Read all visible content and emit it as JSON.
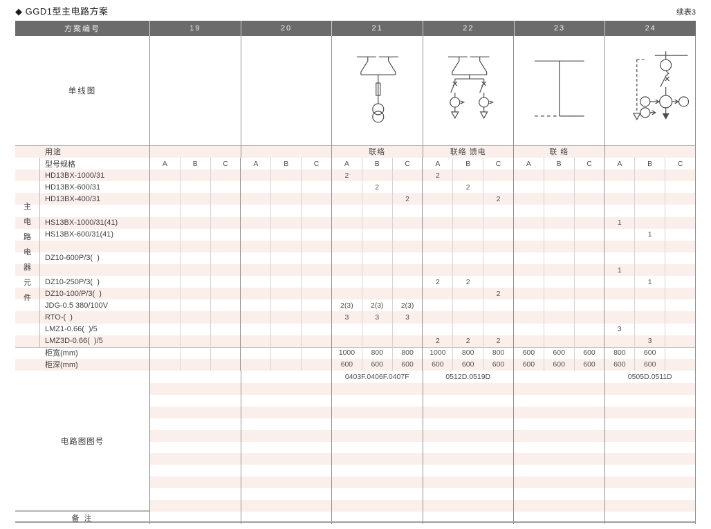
{
  "page": {
    "title": "◆ GGD1型主电路方案",
    "continuation_note": "续表3"
  },
  "colors": {
    "header_bg": "#6b6b6b",
    "header_text": "#efefef",
    "stripe_pink": "#fbefec",
    "border_light": "#d4d4d4",
    "border_dark": "#8f8f8f",
    "text": "#4a4a4a"
  },
  "table": {
    "header": {
      "label": "方案编号",
      "schemes": [
        "19",
        "20",
        "21",
        "22",
        "23",
        "24"
      ]
    },
    "diagram_row": {
      "label": "单线图",
      "icons": [
        "empty",
        "empty",
        "busbar-disconnectors-fuse-voltage-transformer-diagram",
        "busbar-disconnectors-dual-feeder-meter-diagram",
        "bus-tie-link-diagram",
        "incoming-fuse-switch-meters-feeder-diagram"
      ]
    },
    "purpose_row": {
      "label": "用途",
      "values": [
        "",
        "",
        "联络",
        "联络 馈电",
        "联 络",
        ""
      ]
    },
    "spec_row": {
      "label": "型号规格",
      "subcolumns": [
        "A",
        "B",
        "C"
      ]
    },
    "side_label_chars": [
      "主",
      "电",
      "路",
      "电",
      "器",
      "元",
      "件"
    ],
    "component_rows": [
      {
        "label": "HD13BX-1000/31",
        "cells": [
          "",
          "",
          "",
          "",
          "",
          "",
          "2",
          "",
          "",
          "2",
          "",
          "",
          "",
          "",
          "",
          "",
          "",
          ""
        ]
      },
      {
        "label": "HD13BX-600/31",
        "cells": [
          "",
          "",
          "",
          "",
          "",
          "",
          "",
          "2",
          "",
          "",
          "2",
          "",
          "",
          "",
          "",
          "",
          "",
          ""
        ]
      },
      {
        "label": "HD13BX-400/31",
        "cells": [
          "",
          "",
          "",
          "",
          "",
          "",
          "",
          "",
          "2",
          "",
          "",
          "2",
          "",
          "",
          "",
          "",
          "",
          ""
        ]
      },
      {
        "label": "",
        "cells": [
          "",
          "",
          "",
          "",
          "",
          "",
          "",
          "",
          "",
          "",
          "",
          "",
          "",
          "",
          "",
          "",
          "",
          ""
        ]
      },
      {
        "label": "HS13BX-1000/31(41)",
        "cells": [
          "",
          "",
          "",
          "",
          "",
          "",
          "",
          "",
          "",
          "",
          "",
          "",
          "",
          "",
          "",
          "1",
          "",
          ""
        ]
      },
      {
        "label": "HS13BX-600/31(41)",
        "cells": [
          "",
          "",
          "",
          "",
          "",
          "",
          "",
          "",
          "",
          "",
          "",
          "",
          "",
          "",
          "",
          "",
          "1",
          ""
        ]
      },
      {
        "label": "",
        "cells": [
          "",
          "",
          "",
          "",
          "",
          "",
          "",
          "",
          "",
          "",
          "",
          "",
          "",
          "",
          "",
          "",
          "",
          ""
        ]
      },
      {
        "label": "DZ10-600P/3(  )",
        "cells": [
          "",
          "",
          "",
          "",
          "",
          "",
          "",
          "",
          "",
          "",
          "",
          "",
          "",
          "",
          "",
          "",
          "",
          ""
        ]
      },
      {
        "label": "",
        "cells": [
          "",
          "",
          "",
          "",
          "",
          "",
          "",
          "",
          "",
          "",
          "",
          "",
          "",
          "",
          "",
          "1",
          "",
          ""
        ]
      },
      {
        "label": "DZ10-250P/3(  )",
        "cells": [
          "",
          "",
          "",
          "",
          "",
          "",
          "",
          "",
          "",
          "2",
          "2",
          "",
          "",
          "",
          "",
          "",
          "1",
          ""
        ]
      },
      {
        "label": "DZ10-100/P/3(  )",
        "cells": [
          "",
          "",
          "",
          "",
          "",
          "",
          "",
          "",
          "",
          "",
          "",
          "2",
          "",
          "",
          "",
          "",
          "",
          ""
        ]
      },
      {
        "label": "JDG-0.5 380/100V",
        "cells": [
          "",
          "",
          "",
          "",
          "",
          "",
          "2(3)",
          "2(3)",
          "2(3)",
          "",
          "",
          "",
          "",
          "",
          "",
          "",
          "",
          ""
        ]
      },
      {
        "label": "RTO-(  )",
        "cells": [
          "",
          "",
          "",
          "",
          "",
          "",
          "3",
          "3",
          "3",
          "",
          "",
          "",
          "",
          "",
          "",
          "",
          "",
          ""
        ]
      },
      {
        "label": "LMZ1-0.66(  )/5",
        "cells": [
          "",
          "",
          "",
          "",
          "",
          "",
          "",
          "",
          "",
          "",
          "",
          "",
          "",
          "",
          "",
          "3",
          "",
          ""
        ]
      },
      {
        "label": "LMZ3D-0.66(  )/5",
        "cells": [
          "",
          "",
          "",
          "",
          "",
          "",
          "",
          "",
          "",
          "2",
          "2",
          "2",
          "",
          "",
          "",
          "",
          "3",
          ""
        ]
      },
      {
        "label": "柜宽(mm)",
        "cells": [
          "",
          "",
          "",
          "",
          "",
          "",
          "1000",
          "800",
          "800",
          "1000",
          "800",
          "800",
          "600",
          "600",
          "600",
          "800",
          "600",
          ""
        ]
      },
      {
        "label": "柜深(mm)",
        "cells": [
          "",
          "",
          "",
          "",
          "",
          "",
          "600",
          "600",
          "600",
          "600",
          "600",
          "600",
          "600",
          "600",
          "600",
          "600",
          "600",
          ""
        ]
      }
    ],
    "diagram_no_row": {
      "label": "电路图图号",
      "values": [
        "",
        "",
        "0403F.0406F.0407F",
        "0512D.0519D",
        "",
        "0505D.0511D"
      ]
    },
    "remark_row": {
      "label": "备 注"
    }
  }
}
